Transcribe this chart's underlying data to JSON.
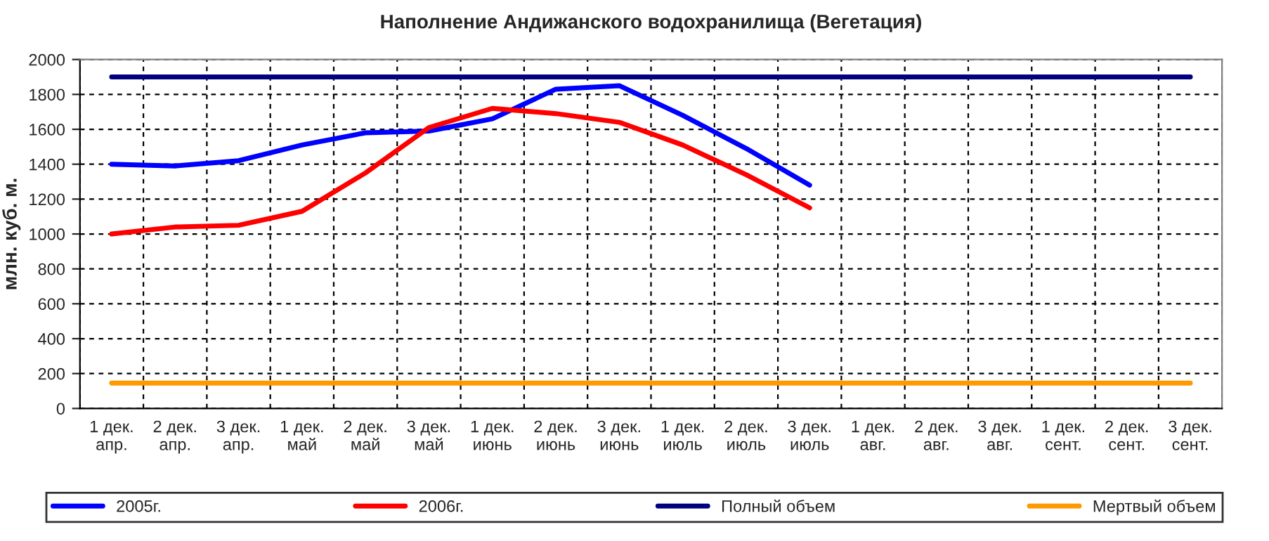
{
  "chart_data": {
    "type": "line",
    "title": "Наполнение Андижанского водохранилища (Вегетация)",
    "ylabel": "млн. куб. м.",
    "categories": [
      "1 дек.\nапр.",
      "2 дек.\nапр.",
      "3 дек.\nапр.",
      "1 дек.\nмай",
      "2 дек.\nмай",
      "3 дек.\nмай",
      "1 дек.\nиюнь",
      "2 дек.\nиюнь",
      "3 дек.\nиюнь",
      "1 дек.\nиюль",
      "2 дек.\nиюль",
      "3 дек.\nиюль",
      "1 дек.\nавг.",
      "2 дек.\nавг.",
      "3 дек.\nавг.",
      "1 дек.\nсент.",
      "2 дек.\nсент.",
      "3 дек.\nсент."
    ],
    "series": [
      {
        "name": "2005г.",
        "color": "#0000ff",
        "values": [
          1400,
          1390,
          1420,
          1510,
          1580,
          1590,
          1660,
          1830,
          1850,
          1680,
          1490,
          1280,
          null,
          null,
          null,
          null,
          null,
          null
        ]
      },
      {
        "name": "2006г.",
        "color": "#ff0000",
        "values": [
          1000,
          1040,
          1050,
          1130,
          1350,
          1610,
          1720,
          1690,
          1640,
          1510,
          1340,
          1150,
          null,
          null,
          null,
          null,
          null,
          null
        ]
      },
      {
        "name": "Полный объем",
        "color": "#000080",
        "values": [
          1900,
          1900,
          1900,
          1900,
          1900,
          1900,
          1900,
          1900,
          1900,
          1900,
          1900,
          1900,
          1900,
          1900,
          1900,
          1900,
          1900,
          1900
        ]
      },
      {
        "name": "Мертвый объем",
        "color": "#ff9900",
        "values": [
          145,
          145,
          145,
          145,
          145,
          145,
          145,
          145,
          145,
          145,
          145,
          145,
          145,
          145,
          145,
          145,
          145,
          145
        ]
      }
    ],
    "ylim": [
      0,
      2000
    ],
    "yticks": [
      0,
      200,
      400,
      600,
      800,
      1000,
      1200,
      1400,
      1600,
      1800,
      2000
    ],
    "grid": true,
    "legend": "bottom",
    "marker": "none",
    "line_style": "solid"
  }
}
